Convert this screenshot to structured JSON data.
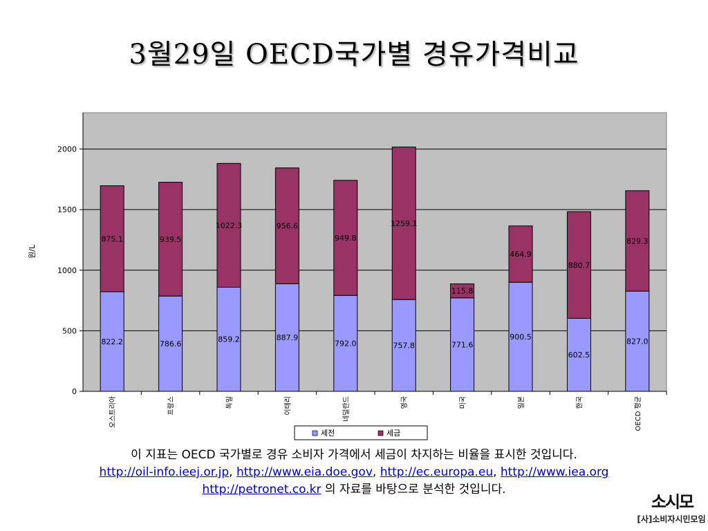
{
  "slide": {
    "title": "3월29일 OECD국가별 경유가격비교",
    "caption_line1": "이 지표는 OECD 국가별로 경유 소비자 가격에서 세금이 차지하는 비율을 표시한 것입니다.",
    "links": [
      "http://oil-info.ieej.or.jp",
      "http://www.eia.doe.gov",
      "http://ec.europa.eu",
      "http://www.iea.org",
      "http://petronet.co.kr"
    ],
    "separator": ",",
    "caption_line3_suffix": " 의 자료를 바탕으로 분석한 것입니다.",
    "logo_mark": "소시모",
    "logo_name": "[사]소비자시민모임"
  },
  "chart_data": {
    "type": "bar",
    "stacked": true,
    "categories": [
      "오스트리아",
      "프랑스",
      "독일",
      "이태리",
      "네덜란드",
      "영국",
      "미국",
      "일본",
      "한국",
      "OECD 평균"
    ],
    "series": [
      {
        "name": "세전",
        "color": "#9999ff",
        "values": [
          822.2,
          786.6,
          859.2,
          887.9,
          792.0,
          757.8,
          771.6,
          900.5,
          602.5,
          827.0
        ]
      },
      {
        "name": "세금",
        "color": "#993366",
        "values": [
          875.1,
          939.5,
          1022.3,
          956.6,
          949.8,
          1259.1,
          115.8,
          464.9,
          880.7,
          829.3
        ]
      }
    ],
    "value_labels": [
      [
        "822.2",
        "786.6",
        "859.2",
        "887.9",
        "792.0",
        "757.8",
        "771.6",
        "900.5",
        "602.5",
        "827.0"
      ],
      [
        "875.1",
        "939.5",
        "1022.3",
        "956.6",
        "949.8",
        "1259.1",
        "115.8",
        "464.9",
        "880.7",
        "829.3"
      ]
    ],
    "ylabel": "원/L",
    "ylim": [
      0,
      2300
    ],
    "yticks": [
      0,
      500,
      1000,
      1500,
      2000
    ],
    "plot_background": "#c0c0c0",
    "grid": true,
    "legend_position": "bottom"
  }
}
